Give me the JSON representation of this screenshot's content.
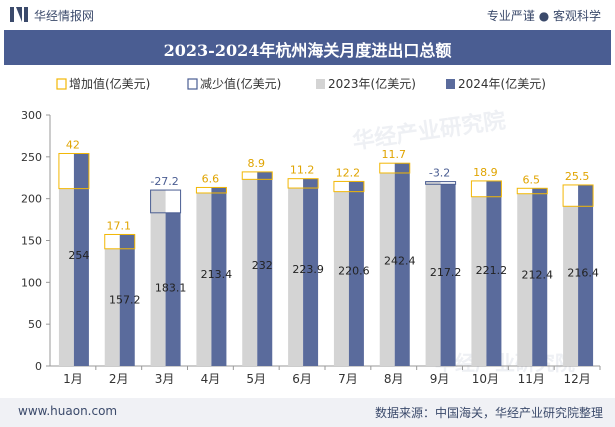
{
  "header": {
    "brand": "华经情报网",
    "tagline": "专业严谨 ● 客观科学"
  },
  "title": "2023-2024年杭州海关月度进出口总额",
  "footer": {
    "url": "www.huaon.com",
    "source": "数据来源：中国海关，华经产业研究院整理"
  },
  "watermark": "华经产业研究院",
  "colors": {
    "bar2023": "#d4d4d4",
    "bar2024": "#5a6b9c",
    "increase": "#f2b705",
    "decrease": "#4a5d92",
    "title_band": "#4a5d92"
  },
  "chart_data": {
    "type": "bar",
    "categories": [
      "1月",
      "2月",
      "3月",
      "4月",
      "5月",
      "6月",
      "7月",
      "8月",
      "9月",
      "10月",
      "11月",
      "12月"
    ],
    "series": [
      {
        "name": "2023年(亿美元)",
        "values": [
          212,
          140.1,
          210.3,
          206.8,
          223.1,
          212.7,
          208.4,
          230.7,
          220.4,
          202.3,
          205.9,
          190.9
        ]
      },
      {
        "name": "2024年(亿美元)",
        "values": [
          254,
          157.2,
          183.1,
          213.4,
          232,
          223.9,
          220.6,
          242.4,
          217.2,
          221.2,
          212.4,
          216.4
        ]
      }
    ],
    "change": {
      "increase_name": "增加值(亿美元)",
      "decrease_name": "减少值(亿美元)",
      "values": [
        42,
        17.1,
        -27.2,
        6.6,
        8.9,
        11.2,
        12.2,
        11.7,
        -3.2,
        18.9,
        6.5,
        25.5
      ],
      "labels": [
        "42",
        "17.1",
        "-27.2",
        "6.6",
        "8.9",
        "11.2",
        "12.2",
        "11.7",
        "-3.2",
        "18.9",
        "6.5",
        "25.5"
      ]
    },
    "value_labels": [
      "254",
      "157.2",
      "183.1",
      "213.4",
      "232",
      "223.9",
      "220.6",
      "242.4",
      "217.2",
      "221.2",
      "212.4",
      "216.4"
    ],
    "ylim": [
      0,
      300
    ],
    "yticks": [
      0,
      50,
      100,
      150,
      200,
      250,
      300
    ],
    "ytick_labels": [
      "0",
      "50",
      "100",
      "150",
      "200",
      "250",
      "300"
    ],
    "legend_position": "top",
    "grid": false
  }
}
